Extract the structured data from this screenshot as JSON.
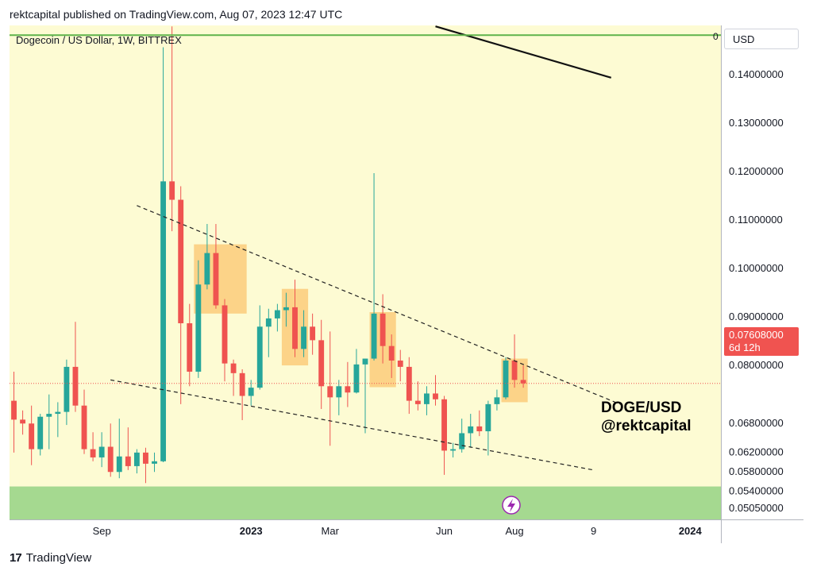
{
  "header": {
    "text": "rektcapital published on TradingView.com, Aug 07, 2023 12:47 UTC"
  },
  "footer": {
    "brand": "TradingView",
    "logo_glyph": "17"
  },
  "currency_button": {
    "label": "USD"
  },
  "price_tag": {
    "price": "0.07608000",
    "countdown": "6d 12h"
  },
  "colors": {
    "plot_bg": "#fdfbd3",
    "support_zone": "#a5d990",
    "resistance_line": "#5fb34a",
    "up": "#26a69a",
    "down": "#ef5350",
    "highlight_box": "#fbc56f",
    "current_price": "#f05350"
  },
  "chart_data": {
    "type": "candlestick",
    "title": "Dogecoin / US Dollar, 1W, BITTREX",
    "timeframe": "1W",
    "exchange": "BITTREX",
    "annotation_text": [
      "DOGE/USD",
      "@rektcapital"
    ],
    "top_line_label": "0",
    "ylim": [
      0.048,
      0.15
    ],
    "y_ticks": [
      "0.14000000",
      "0.13000000",
      "0.12000000",
      "0.11000000",
      "0.10000000",
      "0.09000000",
      "0.08000000",
      "0.06800000",
      "0.06200000",
      "0.05800000",
      "0.05400000",
      "0.05050000"
    ],
    "x_ticks": [
      {
        "label": "Sep",
        "index": 10
      },
      {
        "label": "2023",
        "index": 27,
        "bold": true
      },
      {
        "label": "Mar",
        "index": 36
      },
      {
        "label": "Jun",
        "index": 49
      },
      {
        "label": "Aug",
        "index": 57
      },
      {
        "label": "9",
        "index": 66
      },
      {
        "label": "2024",
        "index": 77,
        "bold": true
      }
    ],
    "x_range": [
      -0.5,
      80.5
    ],
    "current_price": 0.07608,
    "support_zone": [
      0.048,
      0.0548
    ],
    "resistance_level": 0.148,
    "trendline_upper": [
      [
        14,
        0.1128
      ],
      [
        69,
        0.0718
      ]
    ],
    "trendline_lower": [
      [
        11,
        0.0768
      ],
      [
        66,
        0.0582
      ]
    ],
    "long_trendline": [
      [
        48,
        0.1498
      ],
      [
        68,
        0.1392
      ]
    ],
    "highlight_zones": [
      {
        "from": 20.5,
        "to": 26.5,
        "low": 0.0905,
        "high": 0.1048
      },
      {
        "from": 30.5,
        "to": 33.5,
        "low": 0.0798,
        "high": 0.0956
      },
      {
        "from": 40.5,
        "to": 43.5,
        "low": 0.0753,
        "high": 0.0908
      },
      {
        "from": 55.5,
        "to": 58.5,
        "low": 0.0722,
        "high": 0.0812
      }
    ],
    "candles": [
      {
        "o": 0.0725,
        "h": 0.0785,
        "l": 0.0618,
        "c": 0.0686
      },
      {
        "o": 0.0686,
        "h": 0.0705,
        "l": 0.0655,
        "c": 0.0678
      },
      {
        "o": 0.0678,
        "h": 0.0715,
        "l": 0.0592,
        "c": 0.0625
      },
      {
        "o": 0.0625,
        "h": 0.0698,
        "l": 0.0612,
        "c": 0.0692
      },
      {
        "o": 0.0692,
        "h": 0.0738,
        "l": 0.0625,
        "c": 0.0698
      },
      {
        "o": 0.0698,
        "h": 0.0722,
        "l": 0.065,
        "c": 0.0702
      },
      {
        "o": 0.0702,
        "h": 0.081,
        "l": 0.0675,
        "c": 0.0795
      },
      {
        "o": 0.0795,
        "h": 0.0888,
        "l": 0.0702,
        "c": 0.0715
      },
      {
        "o": 0.0715,
        "h": 0.0748,
        "l": 0.0615,
        "c": 0.0625
      },
      {
        "o": 0.0625,
        "h": 0.066,
        "l": 0.06,
        "c": 0.0608
      },
      {
        "o": 0.0608,
        "h": 0.066,
        "l": 0.0588,
        "c": 0.063
      },
      {
        "o": 0.063,
        "h": 0.0678,
        "l": 0.0568,
        "c": 0.0578
      },
      {
        "o": 0.0578,
        "h": 0.0688,
        "l": 0.0565,
        "c": 0.061
      },
      {
        "o": 0.061,
        "h": 0.067,
        "l": 0.0582,
        "c": 0.059
      },
      {
        "o": 0.059,
        "h": 0.0625,
        "l": 0.0575,
        "c": 0.0618
      },
      {
        "o": 0.0618,
        "h": 0.0628,
        "l": 0.0555,
        "c": 0.0595
      },
      {
        "o": 0.0595,
        "h": 0.0618,
        "l": 0.0578,
        "c": 0.06
      },
      {
        "o": 0.06,
        "h": 0.1455,
        "l": 0.0598,
        "c": 0.1178
      },
      {
        "o": 0.1178,
        "h": 0.1498,
        "l": 0.1075,
        "c": 0.114
      },
      {
        "o": 0.114,
        "h": 0.1168,
        "l": 0.0718,
        "c": 0.0885
      },
      {
        "o": 0.0885,
        "h": 0.0925,
        "l": 0.0755,
        "c": 0.0785
      },
      {
        "o": 0.0785,
        "h": 0.1015,
        "l": 0.0772,
        "c": 0.0965
      },
      {
        "o": 0.0965,
        "h": 0.109,
        "l": 0.0955,
        "c": 0.103
      },
      {
        "o": 0.103,
        "h": 0.109,
        "l": 0.0915,
        "c": 0.0922
      },
      {
        "o": 0.0922,
        "h": 0.0935,
        "l": 0.0765,
        "c": 0.0802
      },
      {
        "o": 0.0802,
        "h": 0.081,
        "l": 0.0735,
        "c": 0.0782
      },
      {
        "o": 0.0782,
        "h": 0.079,
        "l": 0.0685,
        "c": 0.0735
      },
      {
        "o": 0.0735,
        "h": 0.0768,
        "l": 0.0715,
        "c": 0.0752
      },
      {
        "o": 0.0752,
        "h": 0.0922,
        "l": 0.0748,
        "c": 0.0878
      },
      {
        "o": 0.0878,
        "h": 0.0915,
        "l": 0.0815,
        "c": 0.0895
      },
      {
        "o": 0.0895,
        "h": 0.0925,
        "l": 0.0868,
        "c": 0.0912
      },
      {
        "o": 0.0912,
        "h": 0.0948,
        "l": 0.0878,
        "c": 0.0918
      },
      {
        "o": 0.0918,
        "h": 0.0975,
        "l": 0.0815,
        "c": 0.0832
      },
      {
        "o": 0.0832,
        "h": 0.0912,
        "l": 0.0815,
        "c": 0.0878
      },
      {
        "o": 0.0878,
        "h": 0.0905,
        "l": 0.082,
        "c": 0.085
      },
      {
        "o": 0.085,
        "h": 0.0892,
        "l": 0.0708,
        "c": 0.0755
      },
      {
        "o": 0.0755,
        "h": 0.0868,
        "l": 0.0632,
        "c": 0.0732
      },
      {
        "o": 0.0732,
        "h": 0.0768,
        "l": 0.0695,
        "c": 0.0755
      },
      {
        "o": 0.0755,
        "h": 0.0805,
        "l": 0.0712,
        "c": 0.0742
      },
      {
        "o": 0.0742,
        "h": 0.0832,
        "l": 0.074,
        "c": 0.08
      },
      {
        "o": 0.08,
        "h": 0.0812,
        "l": 0.0658,
        "c": 0.0812
      },
      {
        "o": 0.0812,
        "h": 0.1195,
        "l": 0.0808,
        "c": 0.0905
      },
      {
        "o": 0.0905,
        "h": 0.0945,
        "l": 0.0802,
        "c": 0.0838
      },
      {
        "o": 0.0838,
        "h": 0.0862,
        "l": 0.0772,
        "c": 0.0808
      },
      {
        "o": 0.0808,
        "h": 0.083,
        "l": 0.0765,
        "c": 0.0795
      },
      {
        "o": 0.0795,
        "h": 0.0815,
        "l": 0.0698,
        "c": 0.0725
      },
      {
        "o": 0.0725,
        "h": 0.0765,
        "l": 0.0705,
        "c": 0.0718
      },
      {
        "o": 0.0718,
        "h": 0.0755,
        "l": 0.0695,
        "c": 0.074
      },
      {
        "o": 0.074,
        "h": 0.0778,
        "l": 0.0715,
        "c": 0.0728
      },
      {
        "o": 0.0728,
        "h": 0.0735,
        "l": 0.0572,
        "c": 0.0622
      },
      {
        "o": 0.0622,
        "h": 0.0638,
        "l": 0.0608,
        "c": 0.0625
      },
      {
        "o": 0.0625,
        "h": 0.0688,
        "l": 0.0618,
        "c": 0.0658
      },
      {
        "o": 0.0658,
        "h": 0.0698,
        "l": 0.0628,
        "c": 0.0672
      },
      {
        "o": 0.0672,
        "h": 0.0705,
        "l": 0.0652,
        "c": 0.0662
      },
      {
        "o": 0.0662,
        "h": 0.0725,
        "l": 0.0612,
        "c": 0.0718
      },
      {
        "o": 0.0718,
        "h": 0.0748,
        "l": 0.0705,
        "c": 0.0732
      },
      {
        "o": 0.0732,
        "h": 0.0815,
        "l": 0.0728,
        "c": 0.0808
      },
      {
        "o": 0.0808,
        "h": 0.0862,
        "l": 0.0752,
        "c": 0.0768
      },
      {
        "o": 0.0768,
        "h": 0.0798,
        "l": 0.0752,
        "c": 0.0761
      }
    ]
  }
}
